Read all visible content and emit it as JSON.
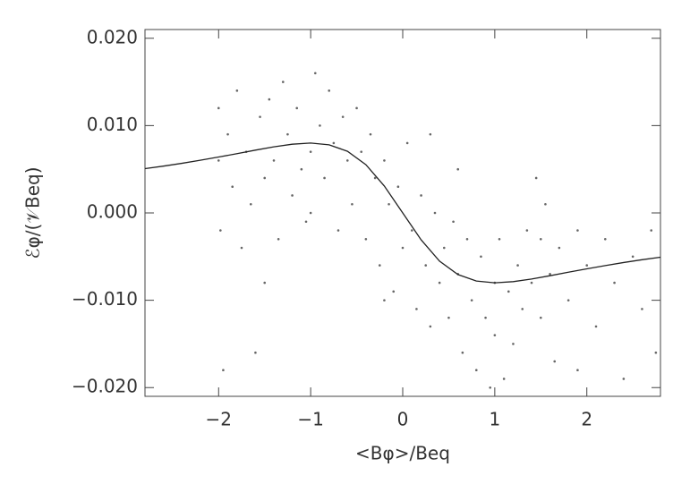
{
  "chart_data": {
    "type": "scatter",
    "x_label": "<Bφ>/Beq",
    "y_label": "ℰφ/(𝒱Beq)",
    "xlim": [
      -2.8,
      2.8
    ],
    "ylim": [
      -0.021,
      0.021
    ],
    "xticks": [
      {
        "value": -2,
        "label": "−2"
      },
      {
        "value": -1,
        "label": "−1"
      },
      0,
      1,
      2
    ],
    "yticks": [
      {
        "value": 0.02,
        "label": "0.020"
      },
      {
        "value": 0.01,
        "label": "0.010"
      },
      {
        "value": 0,
        "label": "0.000"
      },
      {
        "value": -0.01,
        "label": "−0.010"
      },
      {
        "value": -0.02,
        "label": "−0.020"
      }
    ],
    "series": [
      {
        "type": "scatter",
        "color": "#666666",
        "x": [
          -2.0,
          -2.0,
          -1.98,
          -1.95,
          -1.9,
          -1.85,
          -1.8,
          -1.75,
          -1.7,
          -1.65,
          -1.6,
          -1.55,
          -1.5,
          -1.5,
          -1.45,
          -1.4,
          -1.35,
          -1.3,
          -1.25,
          -1.2,
          -1.15,
          -1.1,
          -1.05,
          -1.0,
          -1.0,
          -0.95,
          -0.9,
          -0.85,
          -0.8,
          -0.75,
          -0.7,
          -0.65,
          -0.6,
          -0.55,
          -0.5,
          -0.45,
          -0.4,
          -0.35,
          -0.3,
          -0.25,
          -0.2,
          -0.15,
          -0.1,
          -0.05,
          0.0,
          0.05,
          0.1,
          0.15,
          0.2,
          0.25,
          0.3,
          0.35,
          0.4,
          0.45,
          0.5,
          0.55,
          0.6,
          0.65,
          0.7,
          0.75,
          0.8,
          0.85,
          0.9,
          0.95,
          1.0,
          1.0,
          1.05,
          1.1,
          1.15,
          1.2,
          1.25,
          1.3,
          1.35,
          1.4,
          1.45,
          1.5,
          1.5,
          1.55,
          1.6,
          1.65,
          1.7,
          1.8,
          1.9,
          2.0,
          2.1,
          2.2,
          2.3,
          2.4,
          2.5,
          2.6,
          2.7,
          2.75,
          0.3,
          -0.2,
          0.6,
          1.9
        ],
        "values": [
          0.012,
          0.006,
          -0.002,
          -0.018,
          0.009,
          0.003,
          0.014,
          -0.004,
          0.007,
          0.001,
          -0.016,
          0.011,
          0.004,
          -0.008,
          0.013,
          0.006,
          -0.003,
          0.015,
          0.009,
          0.002,
          0.012,
          0.005,
          -0.001,
          0.007,
          0.0,
          0.016,
          0.01,
          0.004,
          0.014,
          0.008,
          -0.002,
          0.011,
          0.006,
          0.001,
          0.012,
          0.007,
          -0.003,
          0.009,
          0.004,
          -0.006,
          0.006,
          0.001,
          -0.009,
          0.003,
          -0.004,
          0.008,
          -0.002,
          -0.011,
          0.002,
          -0.006,
          -0.013,
          0.0,
          -0.008,
          -0.004,
          -0.012,
          -0.001,
          -0.007,
          -0.016,
          -0.003,
          -0.01,
          -0.018,
          -0.005,
          -0.012,
          -0.02,
          -0.008,
          -0.014,
          -0.003,
          -0.019,
          -0.009,
          -0.015,
          -0.006,
          -0.011,
          -0.002,
          -0.008,
          0.004,
          -0.003,
          -0.012,
          0.001,
          -0.007,
          -0.017,
          -0.004,
          -0.01,
          -0.002,
          -0.006,
          -0.013,
          -0.003,
          -0.008,
          -0.019,
          -0.005,
          -0.011,
          -0.002,
          -0.016,
          0.009,
          -0.01,
          0.005,
          -0.018
        ]
      },
      {
        "type": "line",
        "color": "#222222",
        "x": [
          -2.8,
          -2.6,
          -2.4,
          -2.2,
          -2.0,
          -1.8,
          -1.6,
          -1.4,
          -1.2,
          -1.0,
          -0.8,
          -0.6,
          -0.4,
          -0.2,
          0.0,
          0.2,
          0.4,
          0.6,
          0.8,
          1.0,
          1.2,
          1.4,
          1.6,
          1.8,
          2.0,
          2.2,
          2.4,
          2.6,
          2.8
        ],
        "values": [
          0.00507,
          0.00536,
          0.00568,
          0.00603,
          0.0064,
          0.00679,
          0.00719,
          0.00757,
          0.00787,
          0.008,
          0.0078,
          0.00706,
          0.00552,
          0.00308,
          0.0,
          -0.00308,
          -0.00552,
          -0.00706,
          -0.0078,
          -0.008,
          -0.00787,
          -0.00757,
          -0.00719,
          -0.00679,
          -0.0064,
          -0.00603,
          -0.00568,
          -0.00536,
          -0.00507
        ]
      }
    ]
  }
}
